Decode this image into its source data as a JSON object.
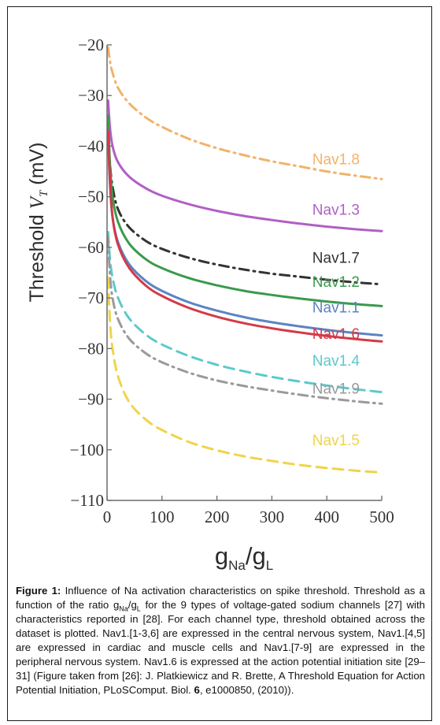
{
  "chart_data": {
    "type": "line",
    "xlabel": {
      "base": "g",
      "sub1": "Na",
      "mid": "/g",
      "sub2": "L"
    },
    "ylabel": {
      "word": "Threshold ",
      "sym": "V",
      "sub": "T",
      "unit": " (mV)"
    },
    "xlim": [
      0,
      500
    ],
    "ylim": [
      -110,
      -20
    ],
    "xticks": [
      0,
      100,
      200,
      300,
      400,
      500
    ],
    "yticks": [
      -20,
      -30,
      -40,
      -50,
      -60,
      -70,
      -80,
      -90,
      -100,
      -110
    ],
    "xtick_labels": [
      "0",
      "100",
      "200",
      "300",
      "400",
      "500"
    ],
    "ytick_labels": [
      "−20",
      "−30",
      "−40",
      "−50",
      "−60",
      "−70",
      "−80",
      "−90",
      "−100",
      "−110"
    ],
    "series": [
      {
        "name": "Nav1.8",
        "color": "#f2b26a",
        "style": "dashdot",
        "x": [
          2,
          5,
          10,
          20,
          40,
          70,
          100,
          150,
          200,
          250,
          300,
          350,
          400,
          450,
          500
        ],
        "y": [
          -20.5,
          -23,
          -25.5,
          -28.5,
          -31.5,
          -34.3,
          -36.2,
          -38.6,
          -40.4,
          -41.8,
          -43,
          -44,
          -45,
          -45.8,
          -46.5
        ]
      },
      {
        "name": "Nav1.3",
        "color": "#b060c4",
        "style": "solid",
        "x": [
          2,
          5,
          10,
          20,
          40,
          70,
          100,
          150,
          200,
          250,
          300,
          350,
          400,
          450,
          500
        ],
        "y": [
          -31,
          -36,
          -40,
          -43.2,
          -46,
          -48.3,
          -49.8,
          -51.5,
          -52.8,
          -53.8,
          -54.6,
          -55.3,
          -55.9,
          -56.4,
          -56.8
        ]
      },
      {
        "name": "Nav1.7",
        "color": "#333333",
        "style": "dashdot",
        "x": [
          2,
          5,
          10,
          20,
          40,
          70,
          100,
          150,
          200,
          250,
          300,
          350,
          400,
          450,
          500
        ],
        "y": [
          -36,
          -43,
          -48,
          -52.5,
          -56,
          -58.7,
          -60.3,
          -62.1,
          -63.4,
          -64.4,
          -65.2,
          -65.8,
          -66.4,
          -66.9,
          -67.3
        ]
      },
      {
        "name": "Nav1.2",
        "color": "#3a9a4c",
        "style": "solid",
        "x": [
          2,
          5,
          10,
          20,
          40,
          70,
          100,
          150,
          200,
          250,
          300,
          350,
          400,
          450,
          500
        ],
        "y": [
          -34,
          -43,
          -50,
          -55,
          -59.2,
          -62.3,
          -64.1,
          -66.1,
          -67.5,
          -68.6,
          -69.4,
          -70.1,
          -70.7,
          -71.2,
          -71.6
        ]
      },
      {
        "name": "Nav1.1",
        "color": "#5b84c4",
        "style": "solid",
        "x": [
          2,
          5,
          10,
          20,
          40,
          70,
          100,
          150,
          200,
          250,
          300,
          350,
          400,
          450,
          500
        ],
        "y": [
          -38,
          -47,
          -54,
          -59,
          -63.3,
          -66.6,
          -68.6,
          -70.9,
          -72.5,
          -73.8,
          -74.8,
          -75.6,
          -76.3,
          -76.9,
          -77.4
        ]
      },
      {
        "name": "Nav1.6",
        "color": "#d33a48",
        "style": "solid",
        "x": [
          2,
          5,
          10,
          20,
          40,
          70,
          100,
          150,
          200,
          250,
          300,
          350,
          400,
          450,
          500
        ],
        "y": [
          -37,
          -46,
          -54,
          -59.5,
          -64,
          -67.5,
          -69.6,
          -72,
          -73.7,
          -75,
          -76,
          -76.8,
          -77.5,
          -78.1,
          -78.6
        ]
      },
      {
        "name": "Nav1.4",
        "color": "#5cc9cc",
        "style": "dashed",
        "x": [
          2,
          5,
          10,
          20,
          40,
          70,
          100,
          150,
          200,
          250,
          300,
          350,
          400,
          450,
          500
        ],
        "y": [
          -57,
          -62,
          -66,
          -70,
          -74,
          -77.2,
          -79.2,
          -81.5,
          -83.2,
          -84.5,
          -85.6,
          -86.5,
          -87.3,
          -88,
          -88.6
        ]
      },
      {
        "name": "Nav1.9",
        "color": "#9a9a9a",
        "style": "dashdot",
        "x": [
          2,
          5,
          10,
          20,
          40,
          70,
          100,
          150,
          200,
          250,
          300,
          350,
          400,
          450,
          500
        ],
        "y": [
          -58,
          -65,
          -70,
          -74.2,
          -78,
          -80.9,
          -82.7,
          -84.8,
          -86.3,
          -87.4,
          -88.3,
          -89.1,
          -89.8,
          -90.4,
          -90.9
        ]
      },
      {
        "name": "Nav1.5",
        "color": "#f0d44a",
        "style": "dashed",
        "x": [
          2,
          5,
          10,
          20,
          40,
          70,
          100,
          150,
          200,
          250,
          300,
          350,
          400,
          450,
          500
        ],
        "y": [
          -66,
          -74,
          -80,
          -85.5,
          -90.5,
          -94,
          -96.1,
          -98.5,
          -100.1,
          -101.3,
          -102.2,
          -103,
          -103.6,
          -104.1,
          -104.5
        ]
      }
    ],
    "grid": false,
    "legend": "inline labels at right"
  },
  "caption": {
    "label": "Figure 1:",
    "text_before": " Influence of Na activation characteristics on spike threshold. Threshold as a function of the ratio g",
    "sub1": "Na",
    "mid": "/g",
    "sub2": "L",
    "text_after": " for the 9 types of voltage-gated sodium channels [27] with characteristics reported in [28]. For each channel type, threshold obtained across the dataset is plotted. Nav1.[1-3,6] are expressed in the central nervous system, Nav1.[4,5] are expressed in cardiac and muscle cells and Nav1.[7-9] are expressed in the peripheral nervous system. Nav1.6 is expressed at the action potential initiation site [29–31] (Figure taken from [26]: J. Platkiewicz and R. Brette, A Threshold Equation for Action Potential Initiation, PLoSComput. Biol. ",
    "volume": "6",
    "tail": ", e1000850, (2010))."
  }
}
